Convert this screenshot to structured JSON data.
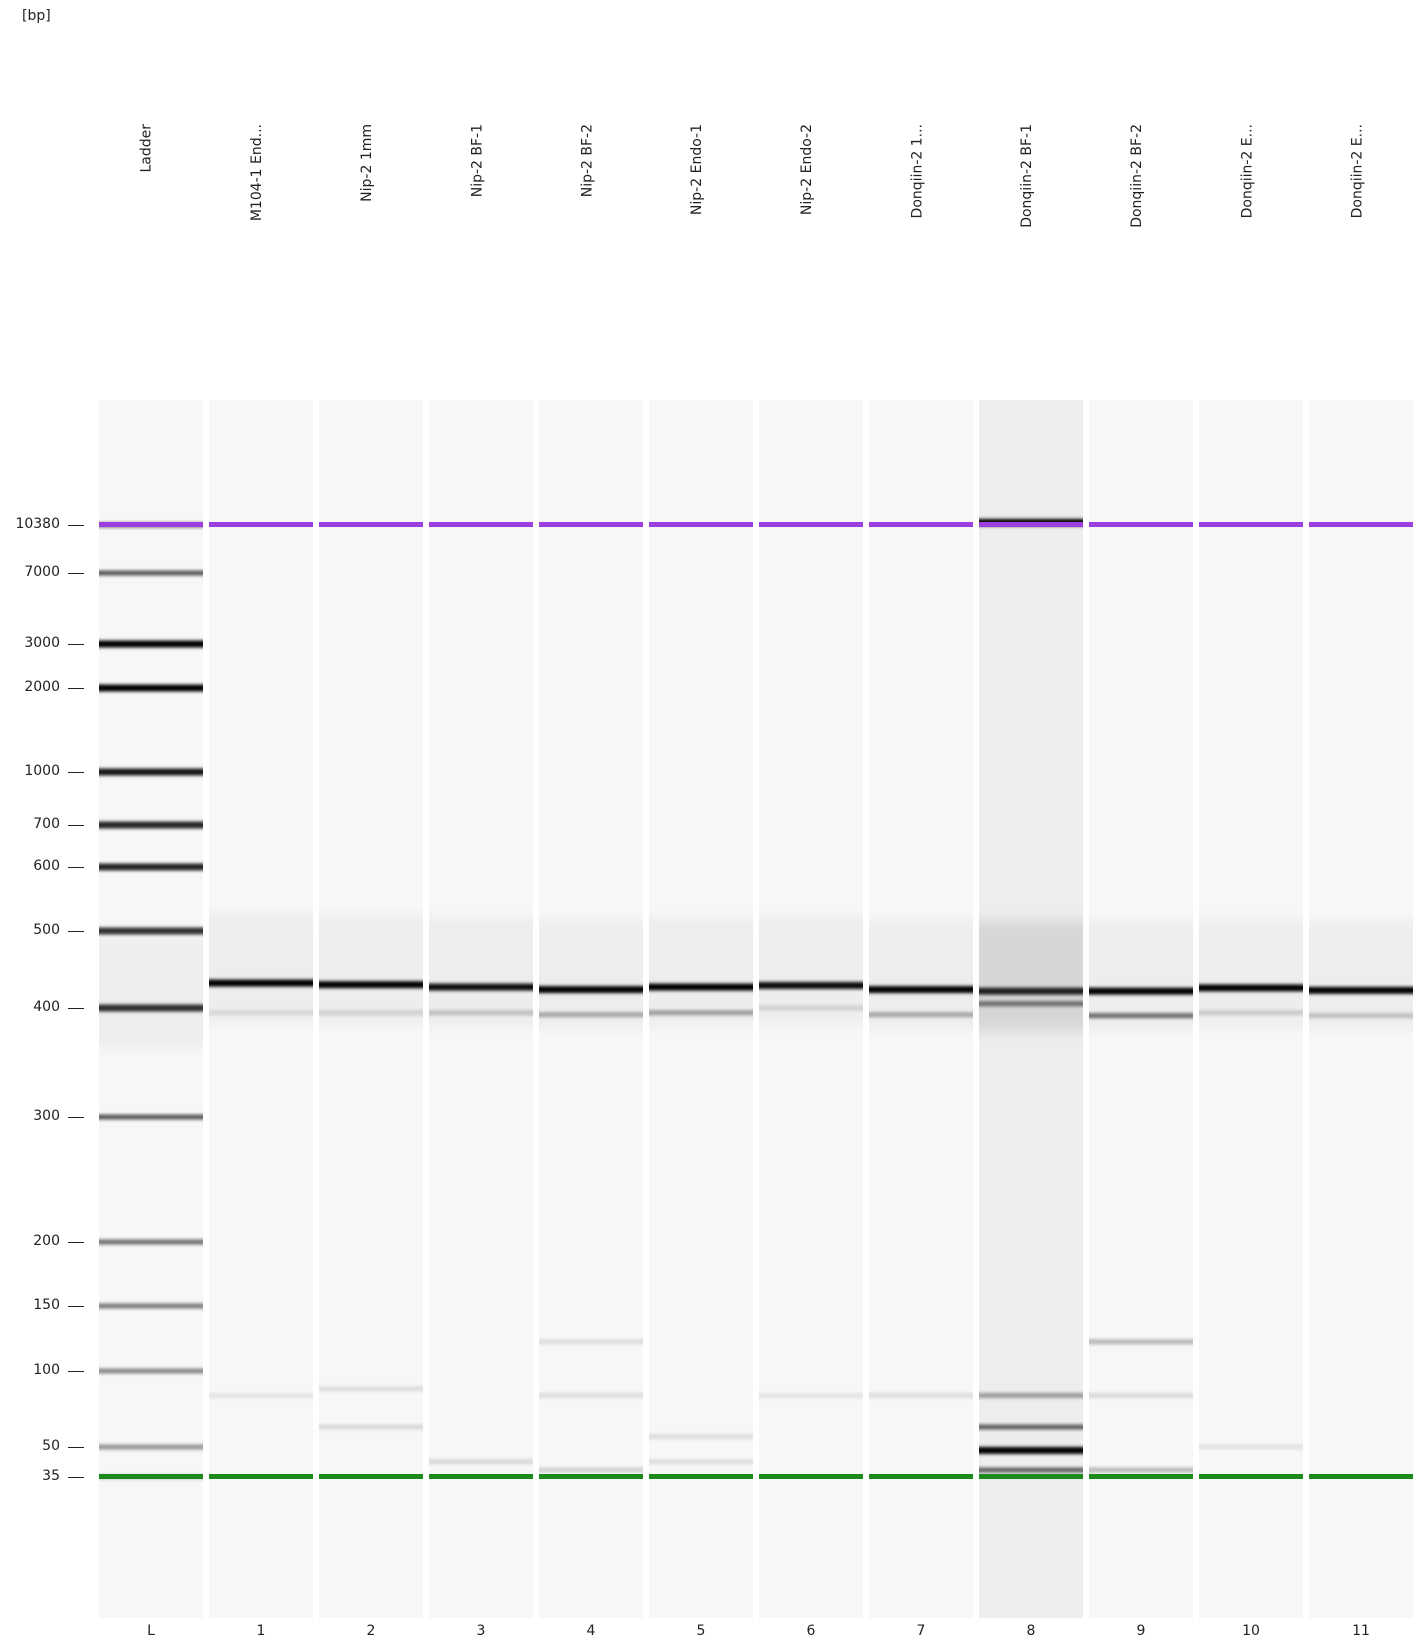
{
  "chart_data": {
    "type": "heatmap",
    "unit_label": "[bp]",
    "ladder_sizes_bp": [
      10380,
      7000,
      3000,
      2000,
      1000,
      700,
      600,
      500,
      400,
      300,
      200,
      150,
      100,
      50,
      35
    ],
    "upper_marker_bp": 10380,
    "lower_marker_bp": 35,
    "upper_marker_color": "#9b3fe0",
    "lower_marker_color": "#1a8a1a",
    "lanes": [
      {
        "id": "L",
        "name": "Ladder",
        "bands": [
          {
            "bp": 10380,
            "intensity": 0.55
          },
          {
            "bp": 7000,
            "intensity": 0.65
          },
          {
            "bp": 3000,
            "intensity": 1.0
          },
          {
            "bp": 2000,
            "intensity": 1.0
          },
          {
            "bp": 1000,
            "intensity": 0.9
          },
          {
            "bp": 700,
            "intensity": 0.85
          },
          {
            "bp": 600,
            "intensity": 0.85
          },
          {
            "bp": 500,
            "intensity": 0.8
          },
          {
            "bp": 400,
            "intensity": 0.8
          },
          {
            "bp": 300,
            "intensity": 0.65
          },
          {
            "bp": 200,
            "intensity": 0.55
          },
          {
            "bp": 150,
            "intensity": 0.5
          },
          {
            "bp": 100,
            "intensity": 0.45
          },
          {
            "bp": 50,
            "intensity": 0.4
          },
          {
            "bp": 35,
            "intensity": 0.2
          }
        ]
      },
      {
        "id": "1",
        "name": "M104-1 End...",
        "bands": [
          {
            "bp": 430,
            "intensity": 1.0
          },
          {
            "bp": 395,
            "intensity": 0.1
          },
          {
            "bp": 80,
            "intensity": 0.08
          }
        ]
      },
      {
        "id": "2",
        "name": "Nip-2 1mm",
        "bands": [
          {
            "bp": 428,
            "intensity": 1.0
          },
          {
            "bp": 395,
            "intensity": 0.12
          },
          {
            "bp": 85,
            "intensity": 0.1
          },
          {
            "bp": 60,
            "intensity": 0.12
          }
        ]
      },
      {
        "id": "3",
        "name": "Nip-2 BF-1",
        "bands": [
          {
            "bp": 425,
            "intensity": 0.95
          },
          {
            "bp": 395,
            "intensity": 0.2
          },
          {
            "bp": 42,
            "intensity": 0.12
          }
        ]
      },
      {
        "id": "4",
        "name": "Nip-2 BF-2",
        "bands": [
          {
            "bp": 422,
            "intensity": 1.0
          },
          {
            "bp": 393,
            "intensity": 0.3
          },
          {
            "bp": 120,
            "intensity": 0.1
          },
          {
            "bp": 80,
            "intensity": 0.1
          },
          {
            "bp": 38,
            "intensity": 0.15
          }
        ]
      },
      {
        "id": "5",
        "name": "Nip-2 Endo-1",
        "bands": [
          {
            "bp": 425,
            "intensity": 1.0
          },
          {
            "bp": 395,
            "intensity": 0.35
          },
          {
            "bp": 55,
            "intensity": 0.1
          },
          {
            "bp": 42,
            "intensity": 0.1
          }
        ]
      },
      {
        "id": "6",
        "name": "Nip-2 Endo-2",
        "bands": [
          {
            "bp": 427,
            "intensity": 0.95
          },
          {
            "bp": 400,
            "intensity": 0.12
          },
          {
            "bp": 80,
            "intensity": 0.08
          }
        ]
      },
      {
        "id": "7",
        "name": "Donqiin-2 1...",
        "bands": [
          {
            "bp": 422,
            "intensity": 1.0
          },
          {
            "bp": 393,
            "intensity": 0.3
          },
          {
            "bp": 80,
            "intensity": 0.1
          }
        ]
      },
      {
        "id": "8",
        "name": "Donqiin-2 BF-1",
        "bands": [
          {
            "bp": 10600,
            "intensity": 1.0
          },
          {
            "bp": 420,
            "intensity": 0.85
          },
          {
            "bp": 405,
            "intensity": 0.5
          },
          {
            "bp": 80,
            "intensity": 0.35
          },
          {
            "bp": 60,
            "intensity": 0.6
          },
          {
            "bp": 48,
            "intensity": 1.0
          },
          {
            "bp": 38,
            "intensity": 0.6
          }
        ]
      },
      {
        "id": "9",
        "name": "Donqiin-2 BF-2",
        "bands": [
          {
            "bp": 420,
            "intensity": 1.0
          },
          {
            "bp": 392,
            "intensity": 0.55
          },
          {
            "bp": 120,
            "intensity": 0.25
          },
          {
            "bp": 80,
            "intensity": 0.12
          },
          {
            "bp": 38,
            "intensity": 0.25
          }
        ]
      },
      {
        "id": "10",
        "name": "Donqiin-2 E...",
        "bands": [
          {
            "bp": 424,
            "intensity": 1.0
          },
          {
            "bp": 395,
            "intensity": 0.15
          },
          {
            "bp": 50,
            "intensity": 0.08
          }
        ]
      },
      {
        "id": "11",
        "name": "Donqiin-2 E...",
        "bands": [
          {
            "bp": 421,
            "intensity": 1.0
          },
          {
            "bp": 392,
            "intensity": 0.2
          }
        ]
      }
    ]
  }
}
